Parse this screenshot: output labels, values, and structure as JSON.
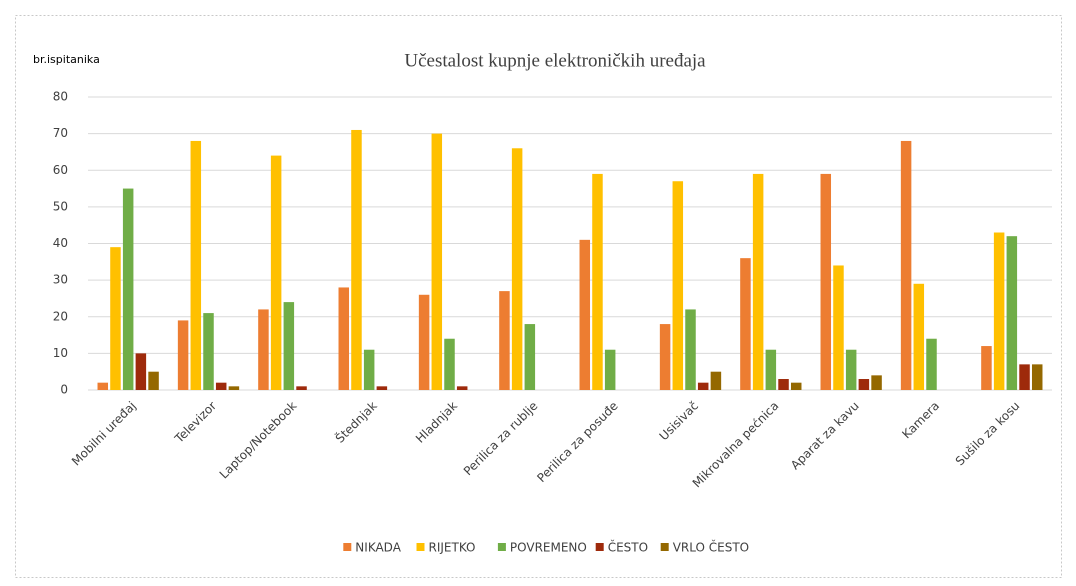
{
  "chart_data": {
    "type": "bar",
    "title": "Učestalost kupnje elektroničkih uređaja",
    "y_label": "br.ispitanika",
    "categories": [
      "Mobilni uređaj",
      "Televizor",
      "Laptop/Notebook",
      "Štednjak",
      "Hladnjak",
      "Perilica za rublje",
      "Perilica za posuđe",
      "Usisivač",
      "Mikrovalna pećnica",
      "Aparat za kavu",
      "Kamera",
      "Sušilo za kosu"
    ],
    "series": [
      {
        "name": "NIKADA",
        "color": "#ed7d31",
        "values": [
          2,
          19,
          22,
          28,
          26,
          27,
          41,
          18,
          36,
          59,
          68,
          12
        ]
      },
      {
        "name": "RIJETKO",
        "color": "#ffc000",
        "values": [
          39,
          68,
          64,
          71,
          70,
          66,
          59,
          57,
          59,
          34,
          29,
          43
        ]
      },
      {
        "name": "POVREMENO",
        "color": "#70ad47",
        "values": [
          55,
          21,
          24,
          11,
          14,
          18,
          11,
          22,
          11,
          11,
          14,
          42
        ]
      },
      {
        "name": "ČESTO",
        "color": "#9e2a0b",
        "values": [
          10,
          2,
          1,
          1,
          1,
          0,
          0,
          2,
          3,
          3,
          0,
          7
        ]
      },
      {
        "name": "VRLO ČESTO",
        "color": "#946800",
        "values": [
          5,
          1,
          0,
          0,
          0,
          0,
          0,
          5,
          2,
          4,
          0,
          7
        ]
      }
    ],
    "ylim": [
      0,
      80
    ],
    "yticks": [
      0,
      10,
      20,
      30,
      40,
      50,
      60,
      70,
      80
    ],
    "grid": true,
    "legend": "bottom"
  }
}
